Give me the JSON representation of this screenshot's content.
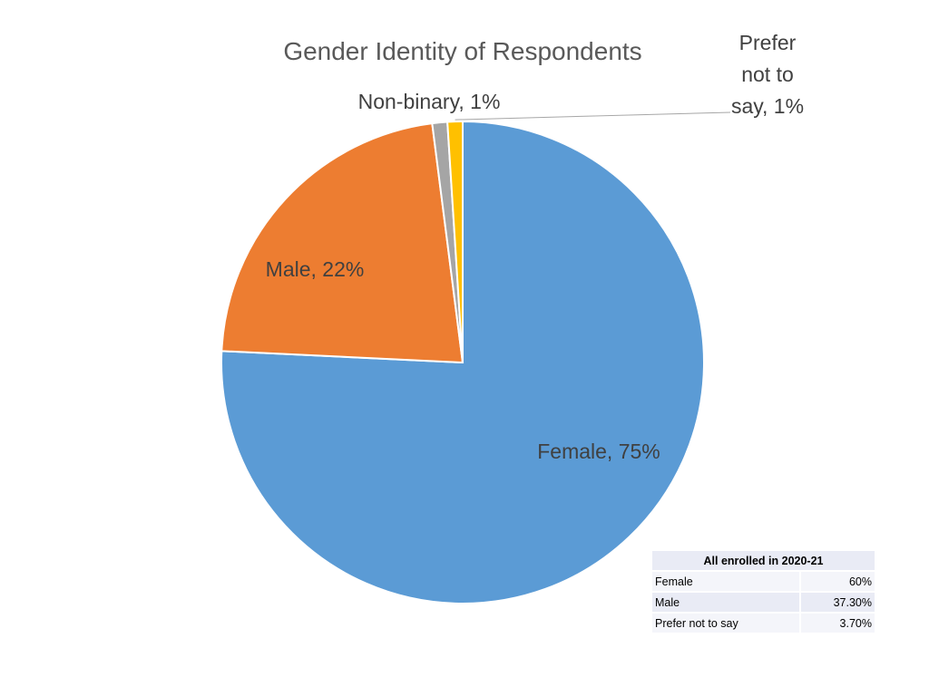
{
  "chart_data": {
    "type": "pie",
    "title": "Gender Identity of Respondents",
    "slices": [
      {
        "name": "Female",
        "value": 75,
        "label": "Female, 75%",
        "color": "#5b9bd5"
      },
      {
        "name": "Male",
        "value": 22,
        "label": "Male, 22%",
        "color": "#ed7d31"
      },
      {
        "name": "Non-binary",
        "value": 1,
        "label": "Non-binary, 1%",
        "color": "#a5a5a5"
      },
      {
        "name": "Prefer not to say",
        "value": 1,
        "label_lines": [
          "Prefer",
          "not to",
          "say, 1%"
        ],
        "color": "#ffc000"
      }
    ],
    "start": "12 o'clock",
    "direction": "clockwise"
  },
  "table": {
    "header": "All enrolled in 2020-21",
    "rows": [
      {
        "label": "Female",
        "value": "60%"
      },
      {
        "label": "Male",
        "value": "37.30%"
      },
      {
        "label": "Prefer not to say",
        "value": "3.70%"
      }
    ]
  }
}
